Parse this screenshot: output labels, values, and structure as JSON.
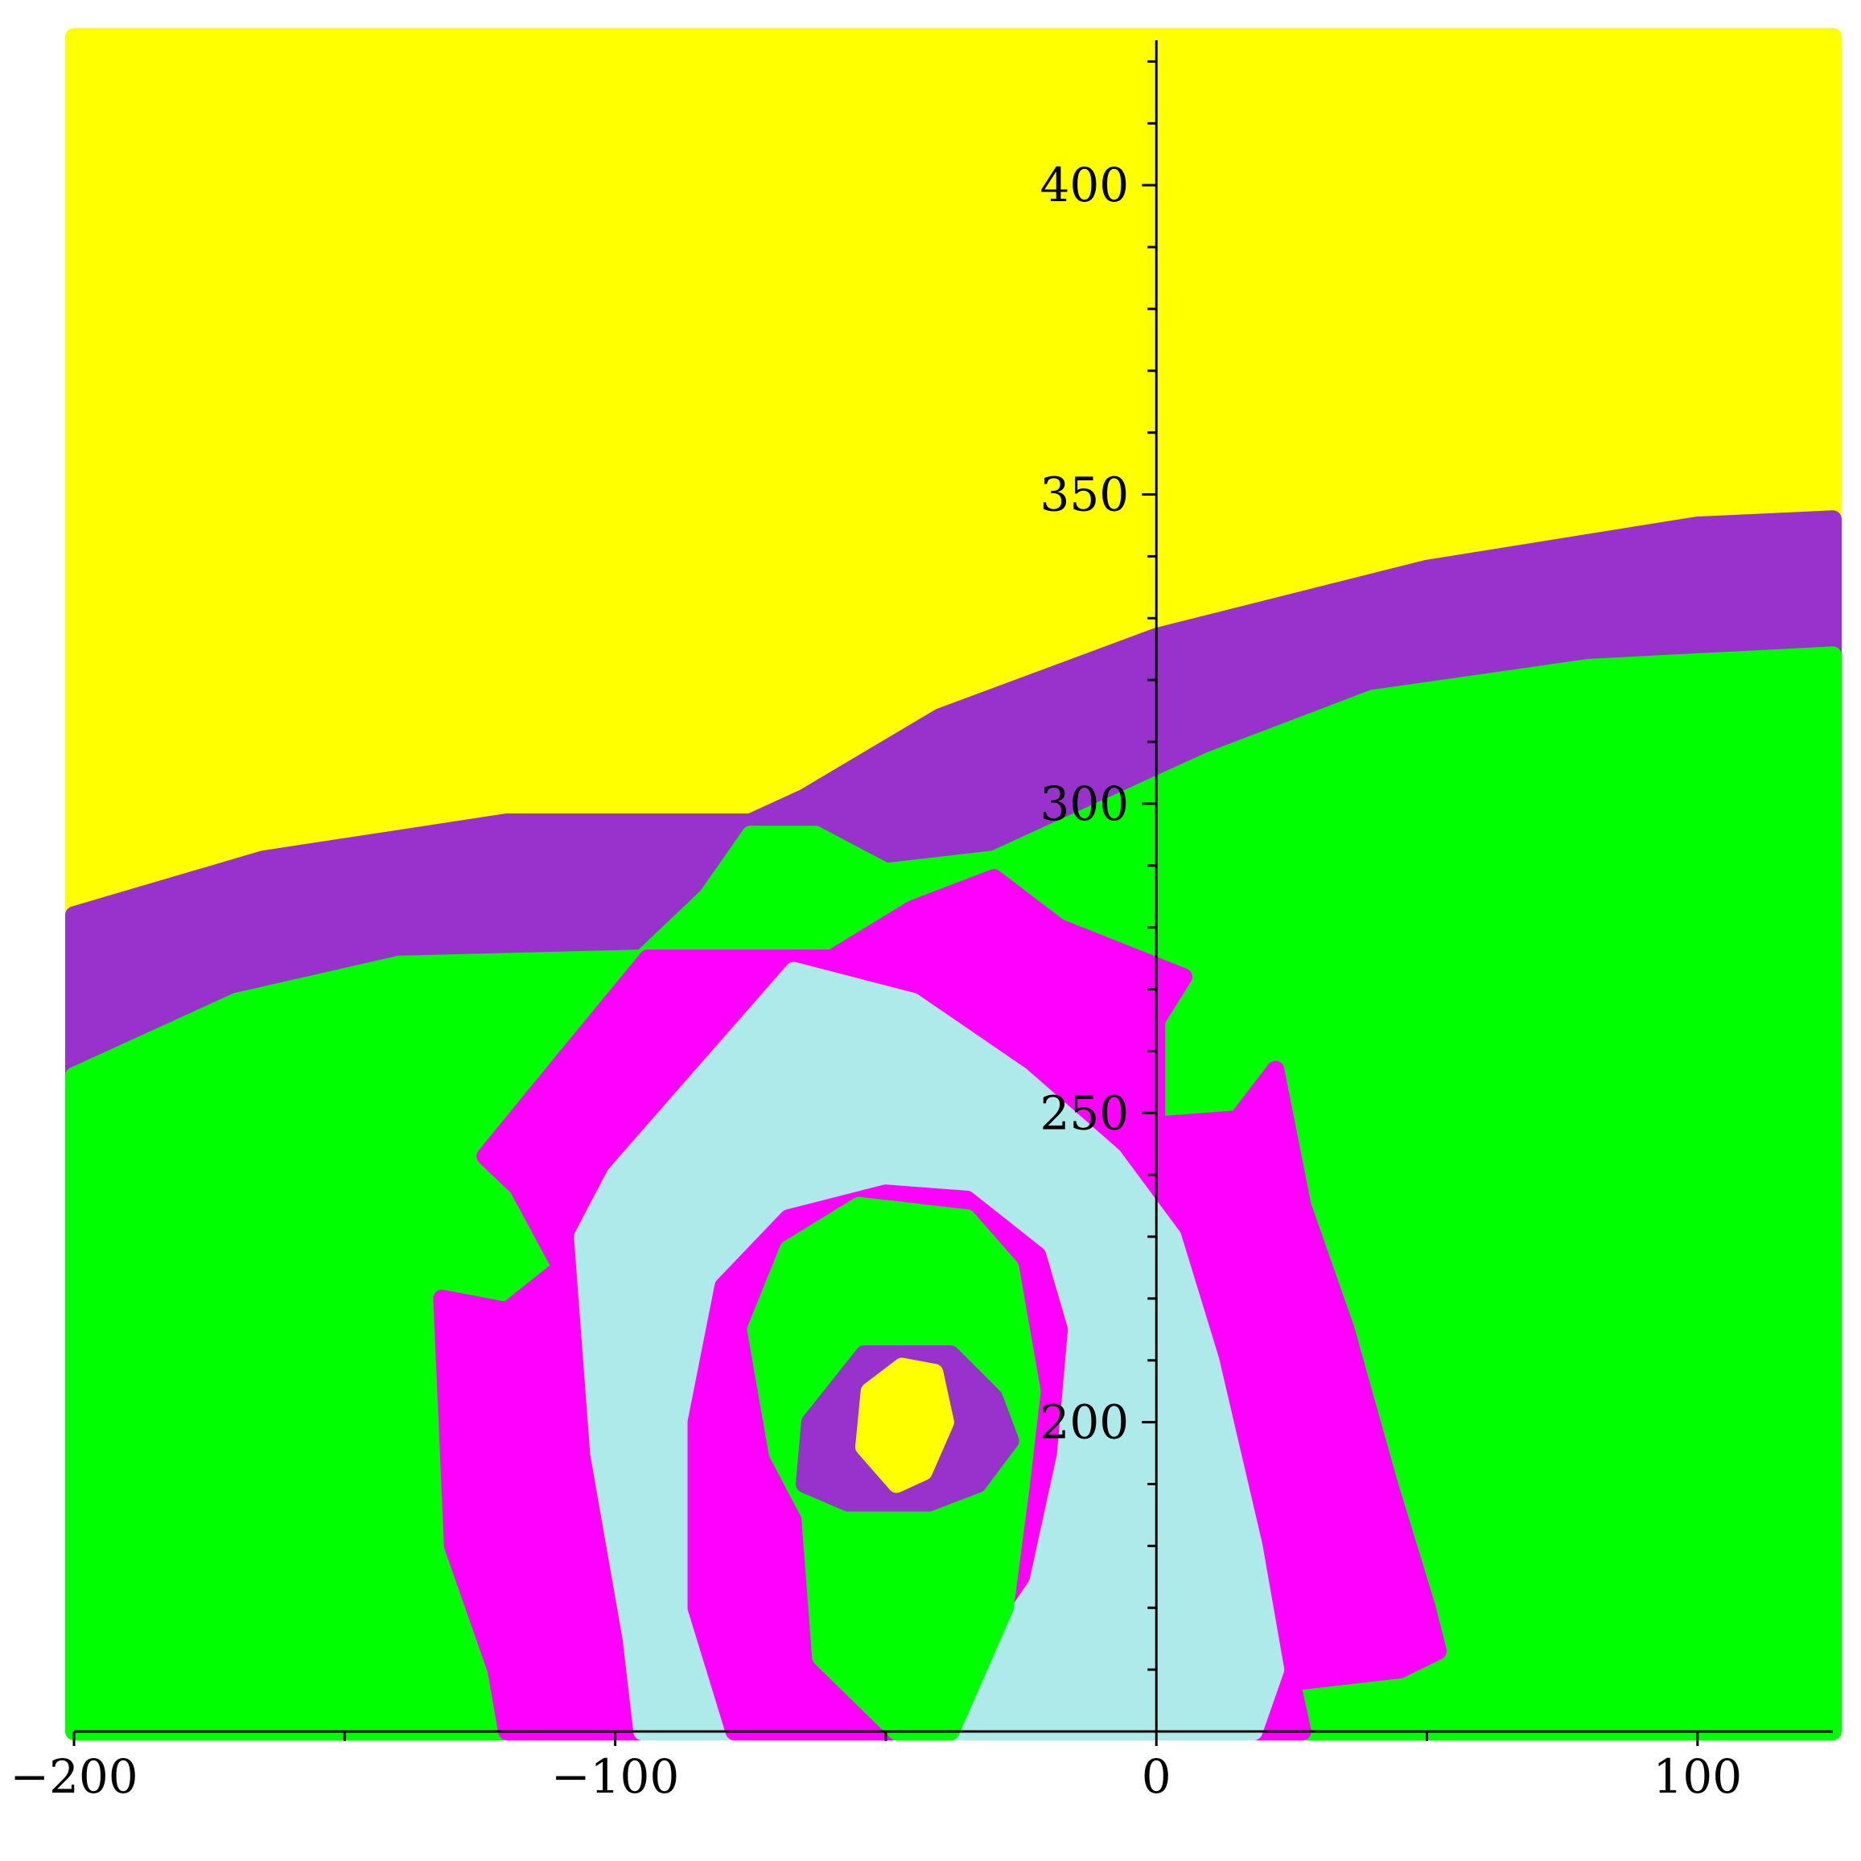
{
  "chart_data": {
    "type": "heatmap",
    "title": "",
    "xlabel": "",
    "ylabel": "",
    "xlim": [
      -200,
      125
    ],
    "ylim": [
      150,
      425
    ],
    "x_ticks": [
      -200,
      -100,
      0,
      100
    ],
    "x_tick_labels": [
      "−200",
      "−100",
      "0",
      "100"
    ],
    "y_ticks": [
      200,
      250,
      300,
      350,
      400
    ],
    "y_tick_labels": [
      "200",
      "250",
      "300",
      "350",
      "400"
    ],
    "x_minor_step": 50,
    "y_minor_step": 10,
    "grid": false,
    "legend": "none",
    "colors": {
      "yellow": "#ffff00",
      "purple": "#9932cc",
      "green": "#00ff00",
      "magenta": "#ff00ff",
      "light_cyan": "#afeaea"
    },
    "regions": [
      {
        "color": "yellow",
        "points": [
          [
            -200,
            424
          ],
          [
            125,
            424
          ],
          [
            125,
            346
          ],
          [
            100,
            345
          ],
          [
            50,
            338
          ],
          [
            0,
            327
          ],
          [
            -40,
            314
          ],
          [
            -65,
            301
          ],
          [
            -75,
            297
          ],
          [
            -120,
            297
          ],
          [
            -165,
            291
          ],
          [
            -200,
            282
          ]
        ]
      },
      {
        "color": "purple",
        "points": [
          [
            -200,
            282
          ],
          [
            -165,
            291
          ],
          [
            -120,
            297
          ],
          [
            -75,
            297
          ],
          [
            -65,
            301
          ],
          [
            -40,
            314
          ],
          [
            0,
            327
          ],
          [
            50,
            338
          ],
          [
            100,
            345
          ],
          [
            125,
            346
          ],
          [
            125,
            324
          ],
          [
            80,
            322
          ],
          [
            40,
            317
          ],
          [
            10,
            307
          ],
          [
            0,
            303
          ],
          [
            -20,
            295
          ],
          [
            -30,
            291
          ],
          [
            -50,
            289
          ],
          [
            -63,
            295
          ],
          [
            -75,
            295
          ],
          [
            -83,
            285
          ],
          [
            -95,
            275
          ],
          [
            -140,
            274
          ],
          [
            -170,
            268
          ],
          [
            -200,
            256
          ]
        ]
      },
      {
        "color": "green",
        "points": [
          [
            -200,
            256
          ],
          [
            -170,
            268
          ],
          [
            -140,
            274
          ],
          [
            -95,
            275
          ],
          [
            -83,
            285
          ],
          [
            -75,
            295
          ],
          [
            -63,
            295
          ],
          [
            -50,
            289
          ],
          [
            -30,
            291
          ],
          [
            -20,
            295
          ],
          [
            0,
            303
          ],
          [
            10,
            307
          ],
          [
            40,
            317
          ],
          [
            80,
            322
          ],
          [
            125,
            324
          ],
          [
            125,
            150
          ],
          [
            -200,
            150
          ]
        ]
      },
      {
        "color": "magenta",
        "points": [
          [
            -94,
            275
          ],
          [
            -60,
            275
          ],
          [
            -45,
            283
          ],
          [
            -30,
            288
          ],
          [
            -18,
            280
          ],
          [
            5,
            272
          ],
          [
            0,
            265
          ],
          [
            0,
            248
          ],
          [
            15,
            249
          ],
          [
            22,
            257
          ],
          [
            27,
            235
          ],
          [
            35,
            215
          ],
          [
            43,
            190
          ],
          [
            50,
            170
          ],
          [
            52,
            163
          ],
          [
            45,
            160
          ],
          [
            25,
            158
          ],
          [
            27,
            150
          ],
          [
            -120,
            150
          ],
          [
            -122,
            160
          ],
          [
            -130,
            180
          ],
          [
            -132,
            220
          ],
          [
            -120,
            218
          ],
          [
            -110,
            225
          ],
          [
            -118,
            238
          ],
          [
            -124,
            243
          ],
          [
            -110,
            258
          ]
        ]
      },
      {
        "color": "light_cyan",
        "points": [
          [
            -67,
            273
          ],
          [
            -45,
            268
          ],
          [
            -25,
            256
          ],
          [
            -8,
            243
          ],
          [
            3,
            230
          ],
          [
            10,
            210
          ],
          [
            18,
            180
          ],
          [
            22,
            160
          ],
          [
            18,
            150
          ],
          [
            -95,
            150
          ],
          [
            -97,
            165
          ],
          [
            -103,
            195
          ],
          [
            -106,
            230
          ],
          [
            -100,
            240
          ],
          [
            -85,
            255
          ]
        ]
      },
      {
        "color": "magenta",
        "points": [
          [
            -50,
            237
          ],
          [
            -35,
            236
          ],
          [
            -22,
            227
          ],
          [
            -18,
            215
          ],
          [
            -20,
            195
          ],
          [
            -25,
            175
          ],
          [
            -35,
            162
          ],
          [
            -38,
            150
          ],
          [
            -78,
            150
          ],
          [
            -85,
            170
          ],
          [
            -85,
            200
          ],
          [
            -80,
            222
          ],
          [
            -68,
            233
          ]
        ]
      },
      {
        "color": "green",
        "points": [
          [
            -55,
            235
          ],
          [
            -35,
            233
          ],
          [
            -27,
            225
          ],
          [
            -23,
            205
          ],
          [
            -25,
            190
          ],
          [
            -28,
            170
          ],
          [
            -33,
            160
          ],
          [
            -38,
            150
          ],
          [
            -48,
            150
          ],
          [
            -62,
            162
          ],
          [
            -64,
            185
          ],
          [
            -70,
            195
          ],
          [
            -74,
            215
          ],
          [
            -68,
            228
          ]
        ]
      },
      {
        "color": "purple",
        "points": [
          [
            -54,
            211
          ],
          [
            -38,
            211
          ],
          [
            -30,
            204
          ],
          [
            -27,
            197
          ],
          [
            -33,
            190
          ],
          [
            -42,
            187
          ],
          [
            -57,
            187
          ],
          [
            -65,
            190
          ],
          [
            -64,
            200
          ]
        ]
      },
      {
        "color": "yellow",
        "points": [
          [
            -47,
            209
          ],
          [
            -41,
            208
          ],
          [
            -39,
            200
          ],
          [
            -43,
            192
          ],
          [
            -48,
            190
          ],
          [
            -54,
            196
          ],
          [
            -53,
            205
          ]
        ]
      }
    ]
  }
}
